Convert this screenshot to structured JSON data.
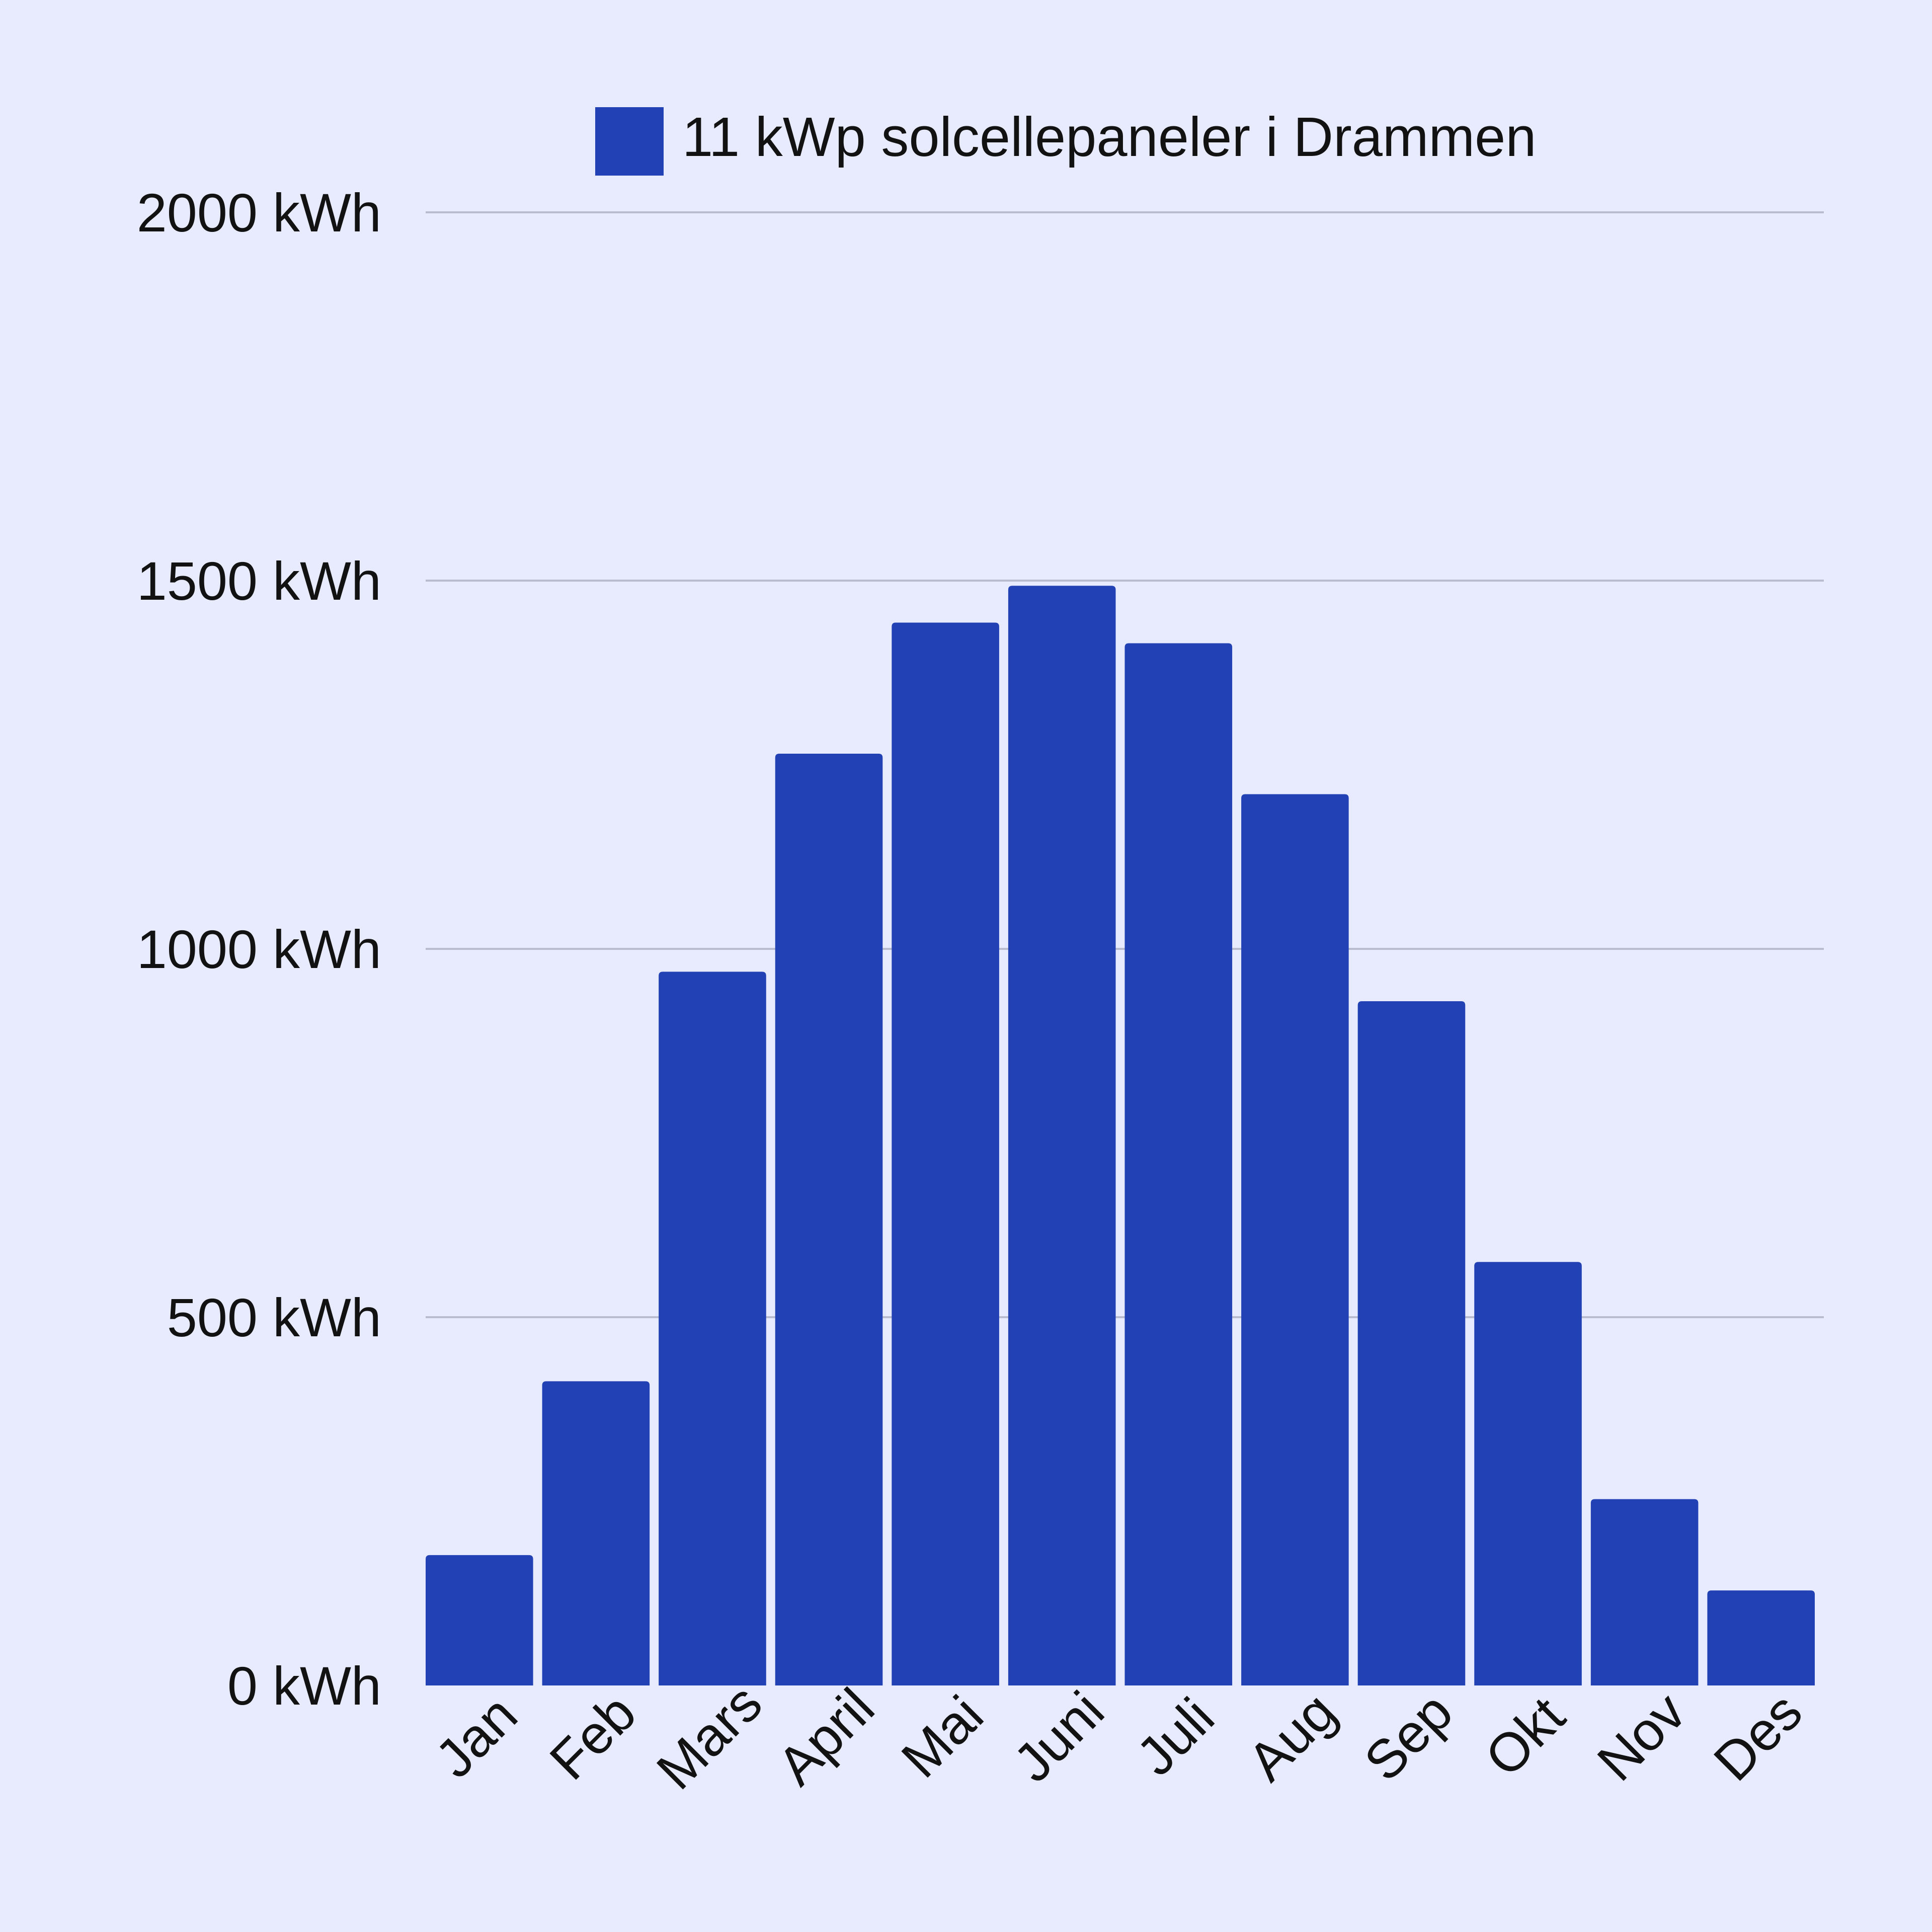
{
  "chart_data": {
    "type": "bar",
    "categories": [
      "Jan",
      "Feb",
      "Mars",
      "April",
      "Mai",
      "Juni",
      "Juli",
      "Aug",
      "Sep",
      "Okt",
      "Nov",
      "Des"
    ],
    "series": [
      {
        "name": "11 kWp solcellepaneler i Drammen",
        "color": "#2141b4",
        "values": [
          177,
          413,
          969,
          1265,
          1443,
          1493,
          1415,
          1210,
          929,
          575,
          253,
          129
        ]
      }
    ],
    "y_ticks": [
      {
        "value": 0,
        "label": "0 kWh"
      },
      {
        "value": 500,
        "label": "500 kWh"
      },
      {
        "value": 1000,
        "label": "1000 kWh"
      },
      {
        "value": 1500,
        "label": "1500 kWh"
      },
      {
        "value": 2000,
        "label": "2000 kWh"
      }
    ],
    "ylim": [
      0,
      2000
    ],
    "grid": true,
    "legend_position": "top-center",
    "title": "",
    "xlabel": "",
    "ylabel": ""
  },
  "colors": {
    "background": "#e7ebfd",
    "bar": "#2141b4",
    "grid": "#b9bccf",
    "text": "#121212"
  }
}
